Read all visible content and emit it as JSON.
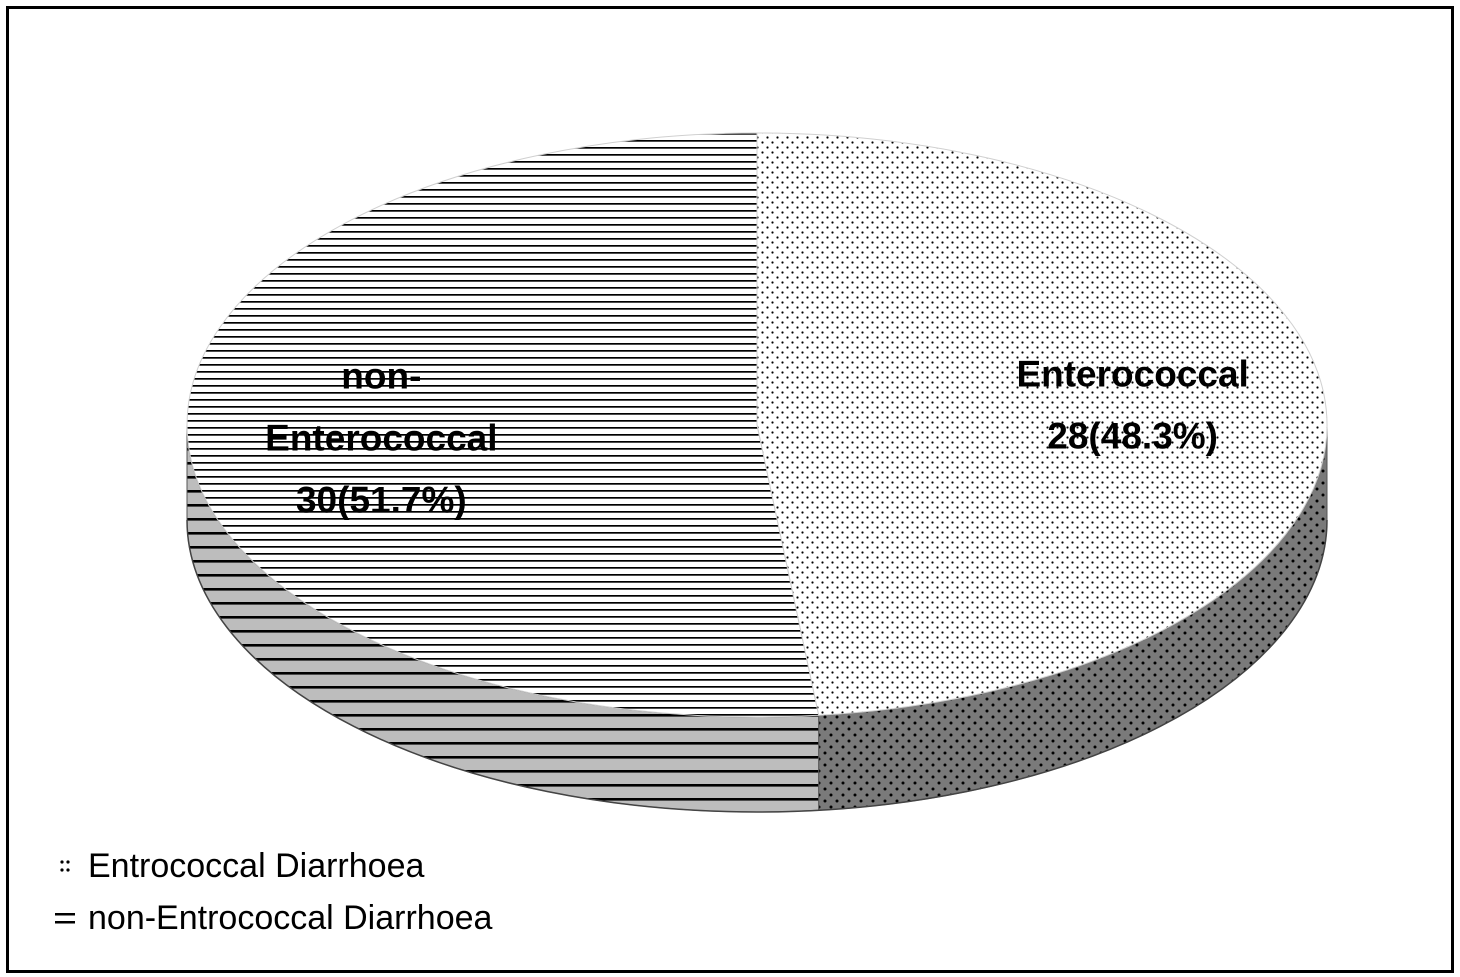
{
  "chart_data": {
    "type": "pie",
    "style": "3d",
    "title": "",
    "slices": [
      {
        "name": "Entrococcal Diarrhoea",
        "label_lines": [
          "Enterococcal",
          "28(48.3%)"
        ],
        "value": 28,
        "percent": 48.3,
        "pattern": "dots"
      },
      {
        "name": "non-Entrococcal Diarrhoea",
        "label_lines": [
          "non-",
          "Enterococcal",
          "30(51.7%)"
        ],
        "value": 30,
        "percent": 51.7,
        "pattern": "horizontal-lines"
      }
    ],
    "legend": {
      "position": "bottom-left",
      "entries": [
        "Entrococcal Diarrhoea",
        "non-Entrococcal Diarrhoea"
      ]
    },
    "colors": {
      "top_face": "#ffffff",
      "side_face": "#777777",
      "pattern_ink": "#000000"
    }
  }
}
